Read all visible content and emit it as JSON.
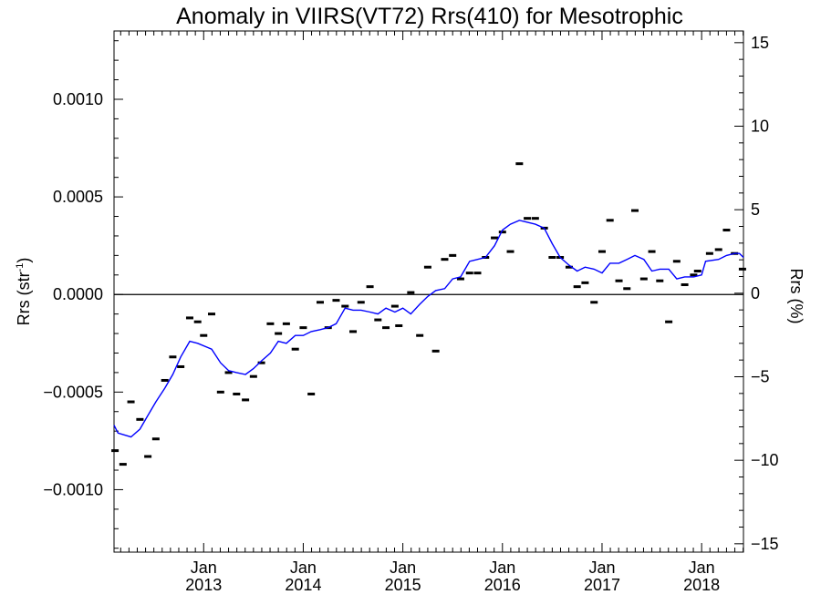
{
  "chart_data": {
    "type": "line",
    "title": "Anomaly in VIIRS(VT72) Rrs(410) for Mesotrophic",
    "ylabel_left": "Rrs (str",
    "ylabel_left_sup": "-1",
    "ylabel_left_close": ")",
    "ylabel_right": "Rrs (%)",
    "xlim": [
      2012.1,
      2018.42
    ],
    "ylim_left": [
      -0.00132,
      0.00135
    ],
    "ylim_right": [
      -15.5,
      15.7
    ],
    "x_ticks": [
      {
        "x": 2013.0,
        "month": "Jan",
        "year": "2013"
      },
      {
        "x": 2014.0,
        "month": "Jan",
        "year": "2014"
      },
      {
        "x": 2015.0,
        "month": "Jan",
        "year": "2015"
      },
      {
        "x": 2016.0,
        "month": "Jan",
        "year": "2016"
      },
      {
        "x": 2017.0,
        "month": "Jan",
        "year": "2017"
      },
      {
        "x": 2018.0,
        "month": "Jan",
        "year": "2018"
      }
    ],
    "y_ticks_left": [
      {
        "value": -0.001,
        "label": "−0.0010"
      },
      {
        "value": -0.0005,
        "label": "−0.0005"
      },
      {
        "value": 0.0,
        "label": "0.0000"
      },
      {
        "value": 0.0005,
        "label": "0.0005"
      },
      {
        "value": 0.001,
        "label": "0.0010"
      }
    ],
    "y_ticks_right": [
      {
        "value": -15,
        "label": "−15"
      },
      {
        "value": -10,
        "label": "−10"
      },
      {
        "value": -5,
        "label": "−5"
      },
      {
        "value": 0,
        "label": "0"
      },
      {
        "value": 5,
        "label": "5"
      },
      {
        "value": 10,
        "label": "10"
      },
      {
        "value": 15,
        "label": "15"
      }
    ],
    "zero_line": 0.0,
    "grid": false,
    "series": [
      {
        "kind": "monthly-anomaly-marks",
        "color": "#000000",
        "points": [
          {
            "x": 2012.11,
            "y": -0.0008
          },
          {
            "x": 2012.19,
            "y": -0.00087
          },
          {
            "x": 2012.27,
            "y": -0.00055
          },
          {
            "x": 2012.36,
            "y": -0.00064
          },
          {
            "x": 2012.44,
            "y": -0.00083
          },
          {
            "x": 2012.52,
            "y": -0.00074
          },
          {
            "x": 2012.61,
            "y": -0.00044
          },
          {
            "x": 2012.69,
            "y": -0.00032
          },
          {
            "x": 2012.77,
            "y": -0.00037
          },
          {
            "x": 2012.86,
            "y": -0.00012
          },
          {
            "x": 2012.94,
            "y": -0.00014
          },
          {
            "x": 2013.0,
            "y": -0.00021
          },
          {
            "x": 2013.08,
            "y": -0.0001
          },
          {
            "x": 2013.17,
            "y": -0.0005
          },
          {
            "x": 2013.25,
            "y": -0.0004
          },
          {
            "x": 2013.33,
            "y": -0.00051
          },
          {
            "x": 2013.42,
            "y": -0.00054
          },
          {
            "x": 2013.5,
            "y": -0.00042
          },
          {
            "x": 2013.58,
            "y": -0.00035
          },
          {
            "x": 2013.67,
            "y": -0.00015
          },
          {
            "x": 2013.75,
            "y": -0.0002
          },
          {
            "x": 2013.83,
            "y": -0.00015
          },
          {
            "x": 2013.92,
            "y": -0.00028
          },
          {
            "x": 2014.0,
            "y": -0.00017
          },
          {
            "x": 2014.08,
            "y": -0.00051
          },
          {
            "x": 2014.17,
            "y": -4e-05
          },
          {
            "x": 2014.25,
            "y": -0.00017
          },
          {
            "x": 2014.33,
            "y": -3e-05
          },
          {
            "x": 2014.42,
            "y": -6e-05
          },
          {
            "x": 2014.5,
            "y": -0.00019
          },
          {
            "x": 2014.58,
            "y": -4e-05
          },
          {
            "x": 2014.67,
            "y": 4e-05
          },
          {
            "x": 2014.75,
            "y": -0.00013
          },
          {
            "x": 2014.83,
            "y": -0.00017
          },
          {
            "x": 2014.92,
            "y": -6e-05
          },
          {
            "x": 2014.96,
            "y": -0.00016
          },
          {
            "x": 2015.08,
            "y": 1e-05
          },
          {
            "x": 2015.17,
            "y": -0.00021
          },
          {
            "x": 2015.25,
            "y": 0.00014
          },
          {
            "x": 2015.33,
            "y": -0.00029
          },
          {
            "x": 2015.42,
            "y": 0.00018
          },
          {
            "x": 2015.5,
            "y": 0.0002
          },
          {
            "x": 2015.58,
            "y": 8e-05
          },
          {
            "x": 2015.67,
            "y": 0.00011
          },
          {
            "x": 2015.75,
            "y": 0.00011
          },
          {
            "x": 2015.83,
            "y": 0.00019
          },
          {
            "x": 2015.92,
            "y": 0.00029
          },
          {
            "x": 2016.0,
            "y": 0.00032
          },
          {
            "x": 2016.08,
            "y": 0.00022
          },
          {
            "x": 2016.17,
            "y": 0.00067
          },
          {
            "x": 2016.25,
            "y": 0.00039
          },
          {
            "x": 2016.33,
            "y": 0.00039
          },
          {
            "x": 2016.42,
            "y": 0.00034
          },
          {
            "x": 2016.5,
            "y": 0.00019
          },
          {
            "x": 2016.58,
            "y": 0.00019
          },
          {
            "x": 2016.67,
            "y": 0.00014
          },
          {
            "x": 2016.75,
            "y": 4e-05
          },
          {
            "x": 2016.83,
            "y": 6e-05
          },
          {
            "x": 2016.92,
            "y": -4e-05
          },
          {
            "x": 2017.0,
            "y": 0.00022
          },
          {
            "x": 2017.08,
            "y": 0.00038
          },
          {
            "x": 2017.17,
            "y": 7e-05
          },
          {
            "x": 2017.25,
            "y": 3e-05
          },
          {
            "x": 2017.33,
            "y": 0.00043
          },
          {
            "x": 2017.42,
            "y": 8e-05
          },
          {
            "x": 2017.5,
            "y": 0.00022
          },
          {
            "x": 2017.58,
            "y": 7e-05
          },
          {
            "x": 2017.67,
            "y": -0.00014
          },
          {
            "x": 2017.75,
            "y": 0.00017
          },
          {
            "x": 2017.83,
            "y": 5e-05
          },
          {
            "x": 2017.92,
            "y": 0.0001
          },
          {
            "x": 2017.96,
            "y": 0.00012
          },
          {
            "x": 2018.08,
            "y": 0.00021
          },
          {
            "x": 2018.17,
            "y": 0.00023
          },
          {
            "x": 2018.25,
            "y": 0.00033
          },
          {
            "x": 2018.33,
            "y": 0.00021
          },
          {
            "x": 2018.41,
            "y": 0.00013
          }
        ]
      },
      {
        "kind": "running-mean-line",
        "color": "#0000ff",
        "points": [
          {
            "x": 2012.1,
            "y": -0.00067
          },
          {
            "x": 2012.14,
            "y": -0.00071
          },
          {
            "x": 2012.27,
            "y": -0.00073
          },
          {
            "x": 2012.36,
            "y": -0.00069
          },
          {
            "x": 2012.44,
            "y": -0.00062
          },
          {
            "x": 2012.52,
            "y": -0.00055
          },
          {
            "x": 2012.61,
            "y": -0.00048
          },
          {
            "x": 2012.69,
            "y": -0.00041
          },
          {
            "x": 2012.77,
            "y": -0.00032
          },
          {
            "x": 2012.86,
            "y": -0.00024
          },
          {
            "x": 2012.94,
            "y": -0.00025
          },
          {
            "x": 2013.08,
            "y": -0.00028
          },
          {
            "x": 2013.17,
            "y": -0.00035
          },
          {
            "x": 2013.25,
            "y": -0.00039
          },
          {
            "x": 2013.33,
            "y": -0.0004
          },
          {
            "x": 2013.42,
            "y": -0.00041
          },
          {
            "x": 2013.5,
            "y": -0.00038
          },
          {
            "x": 2013.58,
            "y": -0.00034
          },
          {
            "x": 2013.67,
            "y": -0.0003
          },
          {
            "x": 2013.75,
            "y": -0.00024
          },
          {
            "x": 2013.83,
            "y": -0.00025
          },
          {
            "x": 2013.92,
            "y": -0.00021
          },
          {
            "x": 2014.0,
            "y": -0.00021
          },
          {
            "x": 2014.08,
            "y": -0.00019
          },
          {
            "x": 2014.17,
            "y": -0.00018
          },
          {
            "x": 2014.25,
            "y": -0.00017
          },
          {
            "x": 2014.33,
            "y": -0.00015
          },
          {
            "x": 2014.42,
            "y": -7e-05
          },
          {
            "x": 2014.5,
            "y": -8e-05
          },
          {
            "x": 2014.58,
            "y": -8e-05
          },
          {
            "x": 2014.67,
            "y": -9e-05
          },
          {
            "x": 2014.75,
            "y": -0.0001
          },
          {
            "x": 2014.83,
            "y": -7e-05
          },
          {
            "x": 2014.92,
            "y": -9e-05
          },
          {
            "x": 2015.0,
            "y": -7e-05
          },
          {
            "x": 2015.08,
            "y": -0.0001
          },
          {
            "x": 2015.17,
            "y": -5e-05
          },
          {
            "x": 2015.25,
            "y": -1e-05
          },
          {
            "x": 2015.33,
            "y": 2e-05
          },
          {
            "x": 2015.42,
            "y": 3e-05
          },
          {
            "x": 2015.5,
            "y": 8e-05
          },
          {
            "x": 2015.58,
            "y": 9e-05
          },
          {
            "x": 2015.67,
            "y": 0.00017
          },
          {
            "x": 2015.75,
            "y": 0.00018
          },
          {
            "x": 2015.83,
            "y": 0.00019
          },
          {
            "x": 2015.92,
            "y": 0.00025
          },
          {
            "x": 2016.0,
            "y": 0.00033
          },
          {
            "x": 2016.08,
            "y": 0.00036
          },
          {
            "x": 2016.17,
            "y": 0.00038
          },
          {
            "x": 2016.25,
            "y": 0.00037
          },
          {
            "x": 2016.33,
            "y": 0.00036
          },
          {
            "x": 2016.42,
            "y": 0.00034
          },
          {
            "x": 2016.5,
            "y": 0.00026
          },
          {
            "x": 2016.58,
            "y": 0.00019
          },
          {
            "x": 2016.67,
            "y": 0.00015
          },
          {
            "x": 2016.75,
            "y": 0.00012
          },
          {
            "x": 2016.83,
            "y": 0.00014
          },
          {
            "x": 2016.92,
            "y": 0.00013
          },
          {
            "x": 2017.0,
            "y": 0.00011
          },
          {
            "x": 2017.08,
            "y": 0.00016
          },
          {
            "x": 2017.17,
            "y": 0.00016
          },
          {
            "x": 2017.25,
            "y": 0.00018
          },
          {
            "x": 2017.33,
            "y": 0.0002
          },
          {
            "x": 2017.42,
            "y": 0.00018
          },
          {
            "x": 2017.5,
            "y": 0.00012
          },
          {
            "x": 2017.58,
            "y": 0.00013
          },
          {
            "x": 2017.67,
            "y": 0.00013
          },
          {
            "x": 2017.75,
            "y": 8e-05
          },
          {
            "x": 2017.83,
            "y": 9e-05
          },
          {
            "x": 2017.92,
            "y": 9e-05
          },
          {
            "x": 2018.0,
            "y": 0.0001
          },
          {
            "x": 2018.04,
            "y": 0.00017
          },
          {
            "x": 2018.17,
            "y": 0.00018
          },
          {
            "x": 2018.25,
            "y": 0.0002
          },
          {
            "x": 2018.33,
            "y": 0.00021
          },
          {
            "x": 2018.38,
            "y": 0.00021
          },
          {
            "x": 2018.42,
            "y": 0.00019
          }
        ]
      }
    ]
  }
}
